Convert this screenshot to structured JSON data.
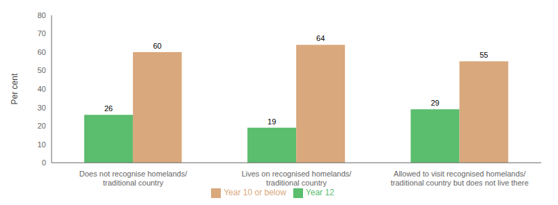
{
  "chart_data": {
    "type": "bar",
    "categories": [
      "Does not recognise homelands/\ntraditional country",
      "Lives on recognised homelands/\ntraditional country",
      "Allowed to visit recognised homelands/\ntraditional country but does not live there"
    ],
    "series": [
      {
        "name": "Year 12",
        "color": "#5BBD6E",
        "values": [
          26,
          19,
          29
        ]
      },
      {
        "name": "Year 10 or below",
        "color": "#D9A87C",
        "values": [
          60,
          64,
          55
        ]
      }
    ],
    "ylabel": "Per cent",
    "ylim": [
      0,
      80
    ],
    "yticks": [
      0,
      10,
      20,
      30,
      40,
      50,
      60,
      70,
      80
    ],
    "grid": false,
    "legend": "bottom",
    "data_labels": true
  }
}
